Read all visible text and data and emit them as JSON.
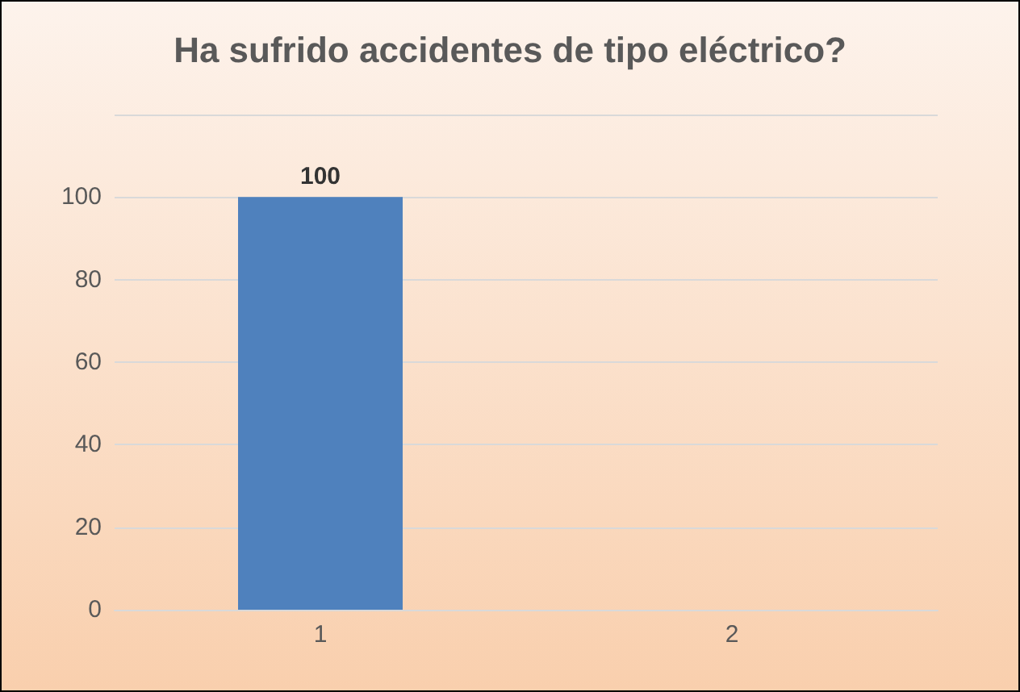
{
  "chart_data": {
    "type": "bar",
    "title": "Ha sufrido accidentes de tipo eléctrico?",
    "categories": [
      "1",
      "2"
    ],
    "values": [
      100,
      0
    ],
    "value_labels": [
      "100",
      null
    ],
    "color": "#4f81bd",
    "ylim": [
      0,
      120
    ],
    "yticks": [
      0,
      20,
      40,
      60,
      80,
      100,
      {
        "value": 120,
        "label": null
      }
    ],
    "grid": true
  }
}
